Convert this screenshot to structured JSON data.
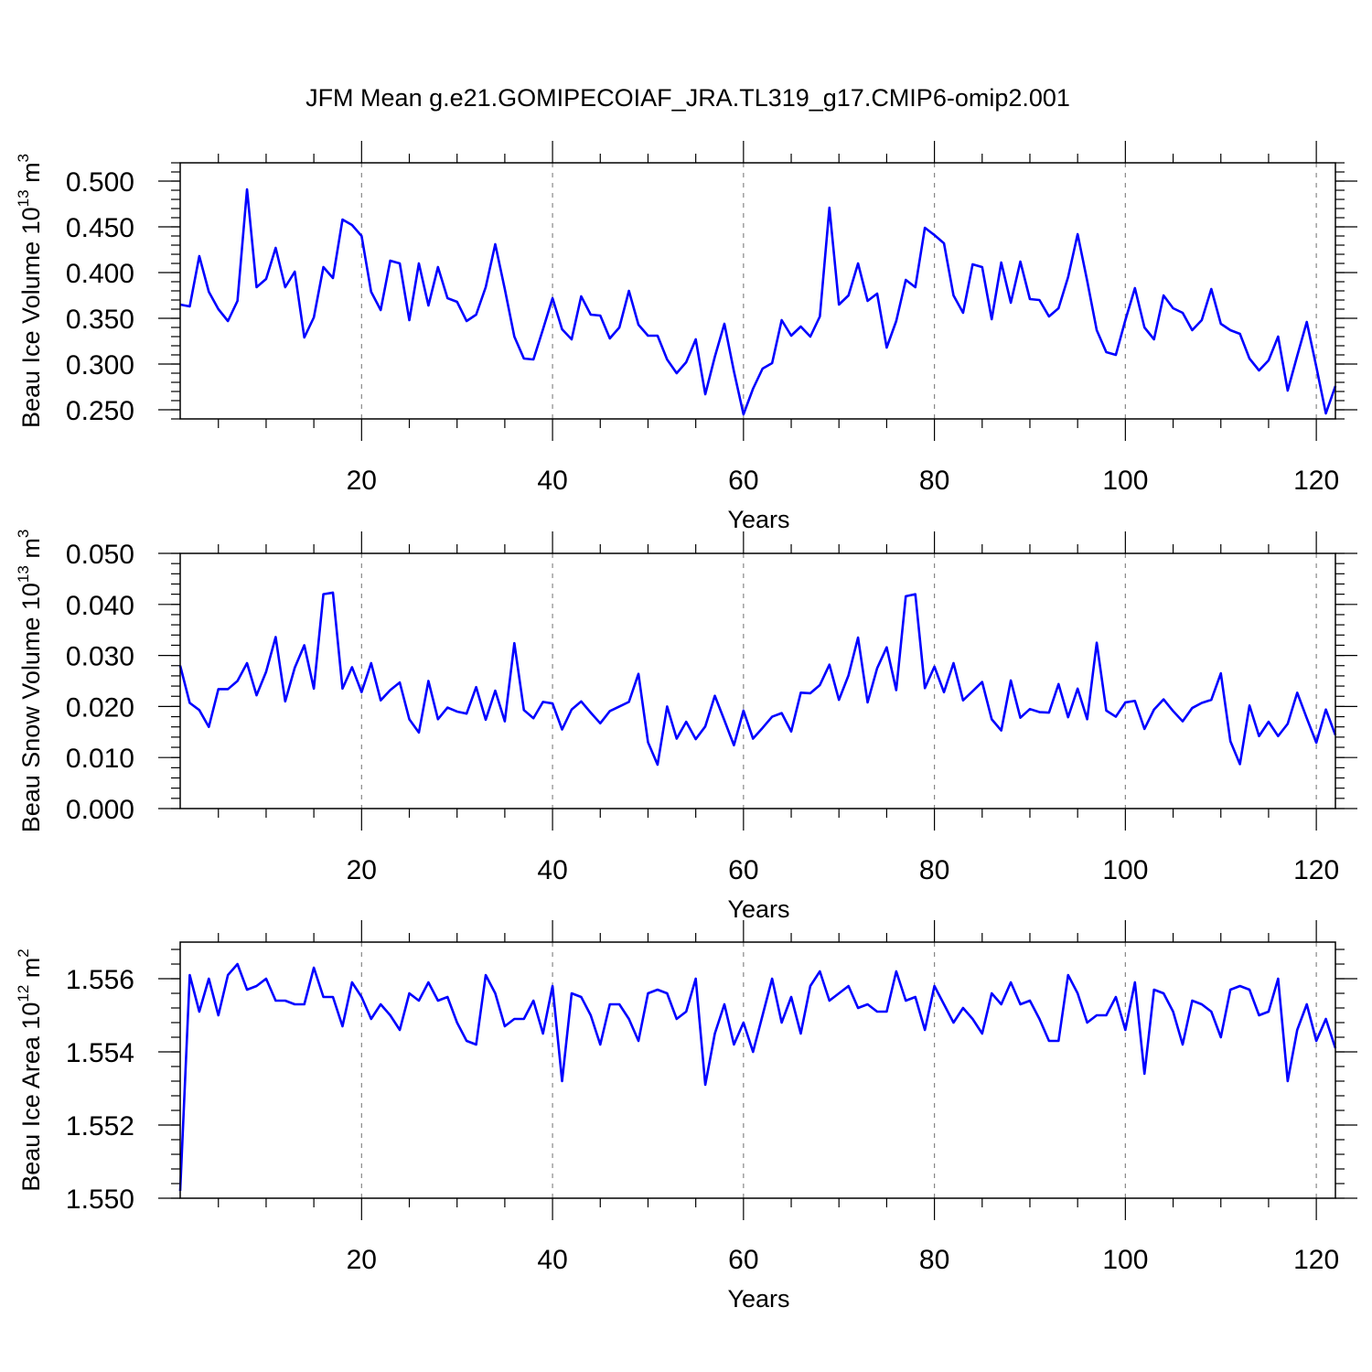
{
  "title": "JFM Mean g.e21.GOMIPECOIAF_JRA.TL319_g17.CMIP6-omip2.001",
  "colors": {
    "series": "#0000ff",
    "grid": "#888888",
    "frame": "#000000"
  },
  "chart_data": [
    {
      "type": "line",
      "xlabel": "Years",
      "ylabel": "Beau Ice Volume 10",
      "ylabel_exp": "13",
      "ylabel_unit": " m",
      "ylabel_unit_exp": "3",
      "xlim": [
        1,
        122
      ],
      "ylim": [
        0.24,
        0.52
      ],
      "xticks": [
        20,
        40,
        60,
        80,
        100,
        120
      ],
      "yticks": [
        0.25,
        0.3,
        0.35,
        0.4,
        0.45,
        0.5
      ],
      "ytick_labels": [
        "0.250",
        "0.300",
        "0.350",
        "0.400",
        "0.450",
        "0.500"
      ],
      "grid": "x-dashed",
      "x_start": 1,
      "values": [
        0.365,
        0.363,
        0.418,
        0.379,
        0.36,
        0.347,
        0.369,
        0.491,
        0.384,
        0.393,
        0.427,
        0.384,
        0.401,
        0.329,
        0.351,
        0.406,
        0.394,
        0.458,
        0.452,
        0.44,
        0.379,
        0.359,
        0.413,
        0.41,
        0.348,
        0.41,
        0.364,
        0.406,
        0.372,
        0.368,
        0.347,
        0.354,
        0.384,
        0.431,
        0.382,
        0.33,
        0.306,
        0.305,
        0.338,
        0.372,
        0.338,
        0.327,
        0.374,
        0.354,
        0.353,
        0.328,
        0.34,
        0.38,
        0.343,
        0.331,
        0.331,
        0.305,
        0.29,
        0.302,
        0.327,
        0.267,
        0.308,
        0.344,
        0.292,
        0.245,
        0.273,
        0.295,
        0.301,
        0.348,
        0.331,
        0.341,
        0.33,
        0.352,
        0.471,
        0.365,
        0.375,
        0.41,
        0.369,
        0.377,
        0.318,
        0.347,
        0.392,
        0.384,
        0.449,
        0.441,
        0.432,
        0.375,
        0.356,
        0.409,
        0.406,
        0.349,
        0.411,
        0.367,
        0.412,
        0.371,
        0.37,
        0.352,
        0.361,
        0.395,
        0.442,
        0.391,
        0.337,
        0.313,
        0.31,
        0.348,
        0.383,
        0.34,
        0.327,
        0.375,
        0.361,
        0.356,
        0.337,
        0.348,
        0.382,
        0.344,
        0.337,
        0.333,
        0.306,
        0.293,
        0.304,
        0.33,
        0.271,
        0.309,
        0.346,
        0.297,
        0.246,
        0.276
      ]
    },
    {
      "type": "line",
      "xlabel": "Years",
      "ylabel": "Beau Snow Volume 10",
      "ylabel_exp": "13",
      "ylabel_unit": " m",
      "ylabel_unit_exp": "3",
      "xlim": [
        1,
        122
      ],
      "ylim": [
        0.0,
        0.05
      ],
      "xticks": [
        20,
        40,
        60,
        80,
        100,
        120
      ],
      "yticks": [
        0.0,
        0.01,
        0.02,
        0.03,
        0.04,
        0.05
      ],
      "ytick_labels": [
        "0.000",
        "0.010",
        "0.020",
        "0.030",
        "0.040",
        "0.050"
      ],
      "grid": "x-dashed",
      "x_start": 1,
      "values": [
        0.028,
        0.0207,
        0.0193,
        0.016,
        0.0234,
        0.0234,
        0.025,
        0.0285,
        0.0222,
        0.0268,
        0.0336,
        0.021,
        0.0276,
        0.032,
        0.0235,
        0.042,
        0.0423,
        0.0235,
        0.0277,
        0.0228,
        0.0285,
        0.0212,
        0.0232,
        0.0247,
        0.0175,
        0.0149,
        0.025,
        0.0175,
        0.0198,
        0.019,
        0.0186,
        0.0238,
        0.0174,
        0.0231,
        0.0171,
        0.0324,
        0.0193,
        0.0177,
        0.0209,
        0.0206,
        0.0155,
        0.0194,
        0.021,
        0.0188,
        0.0167,
        0.0191,
        0.02,
        0.0209,
        0.0264,
        0.013,
        0.0086,
        0.02,
        0.0137,
        0.017,
        0.0136,
        0.0161,
        0.0221,
        0.0173,
        0.0124,
        0.0192,
        0.0137,
        0.0158,
        0.018,
        0.0187,
        0.0151,
        0.0227,
        0.0226,
        0.0242,
        0.0282,
        0.0213,
        0.0261,
        0.0335,
        0.0208,
        0.0275,
        0.0316,
        0.0232,
        0.0416,
        0.042,
        0.0236,
        0.0278,
        0.0228,
        0.0285,
        0.0212,
        0.023,
        0.0248,
        0.0175,
        0.0153,
        0.0251,
        0.0178,
        0.0195,
        0.0189,
        0.0188,
        0.0244,
        0.0179,
        0.0235,
        0.0175,
        0.0325,
        0.0192,
        0.018,
        0.0208,
        0.0211,
        0.0156,
        0.0194,
        0.0214,
        0.0191,
        0.0171,
        0.0197,
        0.0207,
        0.0213,
        0.0265,
        0.0132,
        0.0087,
        0.0202,
        0.0142,
        0.017,
        0.0142,
        0.0166,
        0.0227,
        0.0177,
        0.0129,
        0.0194,
        0.0144
      ]
    },
    {
      "type": "line",
      "xlabel": "Years",
      "ylabel": "Beau Ice Area 10",
      "ylabel_exp": "12",
      "ylabel_unit": " m",
      "ylabel_unit_exp": "2",
      "xlim": [
        1,
        122
      ],
      "ylim": [
        1.55,
        1.557
      ],
      "xticks": [
        20,
        40,
        60,
        80,
        100,
        120
      ],
      "yticks": [
        1.55,
        1.552,
        1.554,
        1.556
      ],
      "ytick_labels": [
        "1.550",
        "1.552",
        "1.554",
        "1.556"
      ],
      "grid": "x-dashed",
      "x_start": 1,
      "values": [
        1.5502,
        1.5561,
        1.5551,
        1.556,
        1.555,
        1.5561,
        1.5564,
        1.5557,
        1.5558,
        1.556,
        1.5554,
        1.5554,
        1.5553,
        1.5553,
        1.5563,
        1.5555,
        1.5555,
        1.5547,
        1.5559,
        1.5555,
        1.5549,
        1.5553,
        1.555,
        1.5546,
        1.5556,
        1.5554,
        1.5559,
        1.5554,
        1.5555,
        1.5548,
        1.5543,
        1.5542,
        1.5561,
        1.5556,
        1.5547,
        1.5549,
        1.5549,
        1.5554,
        1.5545,
        1.5558,
        1.5532,
        1.5556,
        1.5555,
        1.555,
        1.5542,
        1.5553,
        1.5553,
        1.5549,
        1.5543,
        1.5556,
        1.5557,
        1.5556,
        1.5549,
        1.5551,
        1.556,
        1.5531,
        1.5545,
        1.5553,
        1.5542,
        1.5548,
        1.554,
        1.555,
        1.556,
        1.5548,
        1.5555,
        1.5545,
        1.5558,
        1.5562,
        1.5554,
        1.5556,
        1.5558,
        1.5552,
        1.5553,
        1.5551,
        1.5551,
        1.5562,
        1.5554,
        1.5555,
        1.5546,
        1.5558,
        1.5553,
        1.5548,
        1.5552,
        1.5549,
        1.5545,
        1.5556,
        1.5553,
        1.5559,
        1.5553,
        1.5554,
        1.5549,
        1.5543,
        1.5543,
        1.5561,
        1.5556,
        1.5548,
        1.555,
        1.555,
        1.5555,
        1.5546,
        1.5559,
        1.5534,
        1.5557,
        1.5556,
        1.5551,
        1.5542,
        1.5554,
        1.5553,
        1.5551,
        1.5544,
        1.5557,
        1.5558,
        1.5557,
        1.555,
        1.5551,
        1.556,
        1.5532,
        1.5546,
        1.5553,
        1.5543,
        1.5549,
        1.5541
      ]
    }
  ]
}
